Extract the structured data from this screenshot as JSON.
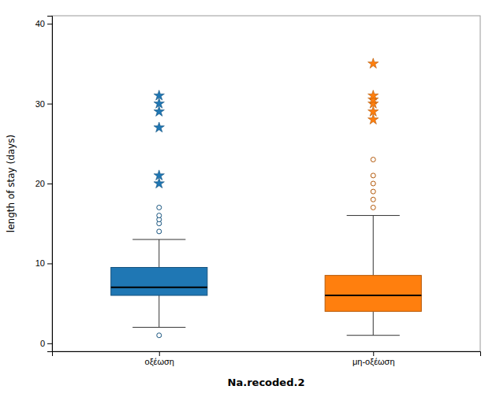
{
  "chart_data": {
    "type": "box",
    "xlabel": "Na.recoded.2",
    "ylabel": "length of stay (days)",
    "categories": [
      "οξέωση",
      "μη-οξέωση"
    ],
    "boxes": [
      {
        "q1": 6.0,
        "median": 7.0,
        "q3": 9.5,
        "whisker_low": 2.0,
        "whisker_high": 13.0,
        "outliers": [
          1.0,
          14.0,
          15.0,
          15.5,
          16.0,
          17.0
        ],
        "extremes": [
          20.0,
          21.0,
          27.0,
          29.0,
          30.0,
          31.0
        ]
      },
      {
        "q1": 4.0,
        "median": 6.0,
        "q3": 8.5,
        "whisker_low": 1.0,
        "whisker_high": 16.0,
        "outliers": [
          17.0,
          18.0,
          19.0,
          20.0,
          21.0,
          23.0
        ],
        "extremes": [
          28.0,
          29.0,
          30.0,
          30.5,
          31.0,
          35.0
        ]
      }
    ],
    "ylim": [
      -1,
      41
    ],
    "yticks": [
      0,
      10,
      20,
      30,
      40
    ],
    "grid": false
  }
}
